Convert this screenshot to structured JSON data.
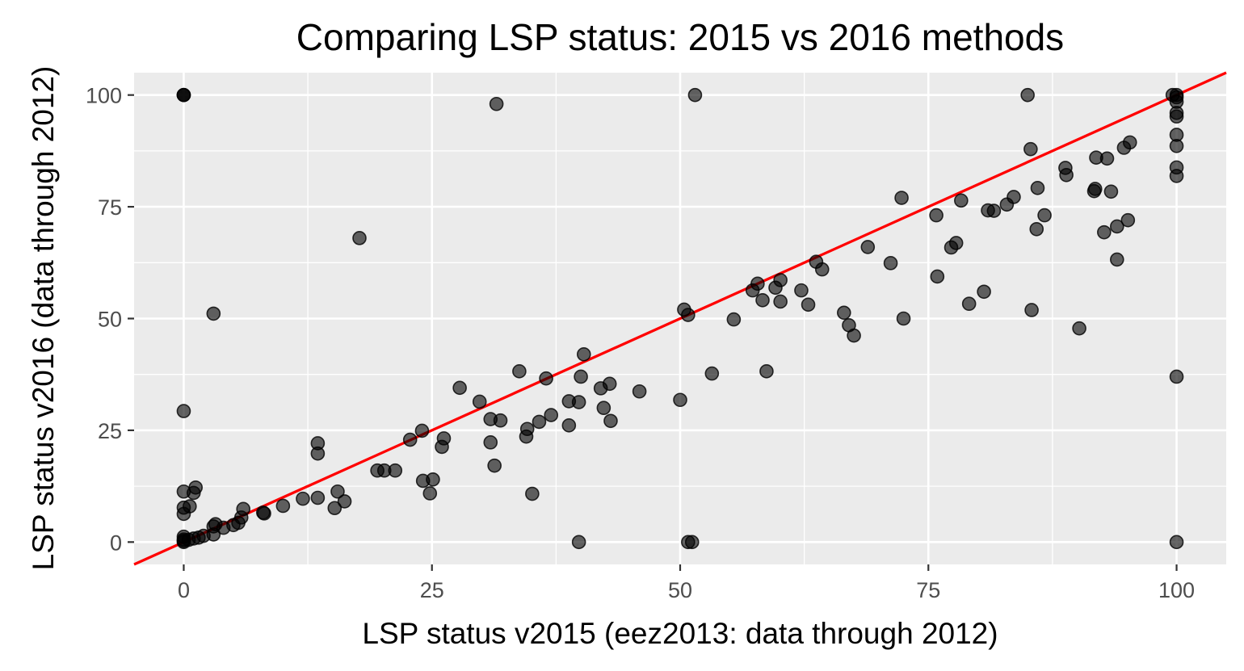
{
  "chart_data": {
    "type": "scatter",
    "title": "Comparing LSP status: 2015 vs 2016 methods",
    "xlabel": "LSP status v2015 (eez2013: data through 2012)",
    "ylabel": "LSP status v2016 (data through 2012)",
    "xlim": [
      -5,
      105
    ],
    "ylim": [
      -5,
      105
    ],
    "x_ticks": [
      0,
      25,
      50,
      75,
      100
    ],
    "y_ticks": [
      0,
      25,
      50,
      75,
      100
    ],
    "x_tick_labels": [
      "0",
      "25",
      "50",
      "75",
      "100"
    ],
    "y_tick_labels": [
      "0",
      "25",
      "50",
      "75",
      "100"
    ],
    "grid": true,
    "background": "#ebebeb",
    "point_color": "#000000",
    "point_alpha": 0.6,
    "reference_line": {
      "slope": 1,
      "intercept": 0,
      "color": "#ff0000"
    },
    "points": [
      [
        0,
        100
      ],
      [
        0,
        100
      ],
      [
        0,
        100
      ],
      [
        0,
        29.3
      ],
      [
        0,
        11.3
      ],
      [
        0,
        7.7
      ],
      [
        0,
        6.3
      ],
      [
        0,
        1.2
      ],
      [
        0,
        0.6
      ],
      [
        0,
        0.3
      ],
      [
        0,
        0
      ],
      [
        0.6,
        8
      ],
      [
        1,
        11
      ],
      [
        1.2,
        12.2
      ],
      [
        0.5,
        0.5
      ],
      [
        1,
        0.8
      ],
      [
        1.5,
        1
      ],
      [
        2,
        1.4
      ],
      [
        3,
        51.1
      ],
      [
        3,
        3.5
      ],
      [
        3.2,
        4
      ],
      [
        3,
        1.7
      ],
      [
        4,
        3.2
      ],
      [
        5,
        3.8
      ],
      [
        5.5,
        4.3
      ],
      [
        6,
        7.4
      ],
      [
        5.8,
        5.5
      ],
      [
        8,
        6.6
      ],
      [
        8.1,
        6.4
      ],
      [
        10,
        8.1
      ],
      [
        12,
        9.7
      ],
      [
        13.5,
        22.1
      ],
      [
        13.5,
        19.8
      ],
      [
        13.5,
        9.9
      ],
      [
        15.5,
        11.3
      ],
      [
        15.2,
        7.6
      ],
      [
        16.2,
        9.1
      ],
      [
        17.7,
        68
      ],
      [
        19.5,
        16
      ],
      [
        20.2,
        16
      ],
      [
        21.3,
        16
      ],
      [
        22.8,
        22.9
      ],
      [
        24,
        24.9
      ],
      [
        24.1,
        13.7
      ],
      [
        25.1,
        14
      ],
      [
        24.8,
        10.9
      ],
      [
        26.2,
        23.2
      ],
      [
        26,
        21.3
      ],
      [
        27.8,
        34.5
      ],
      [
        29.8,
        31.4
      ],
      [
        30.9,
        27.5
      ],
      [
        30.9,
        22.3
      ],
      [
        31.3,
        17.1
      ],
      [
        31.5,
        98
      ],
      [
        31.9,
        27.2
      ],
      [
        33.8,
        38.2
      ],
      [
        34.5,
        23.6
      ],
      [
        34.6,
        25.3
      ],
      [
        35.1,
        10.8
      ],
      [
        35.8,
        26.9
      ],
      [
        36.5,
        36.6
      ],
      [
        37,
        28.4
      ],
      [
        38.8,
        31.5
      ],
      [
        38.8,
        26.1
      ],
      [
        39.8,
        31.3
      ],
      [
        40,
        37
      ],
      [
        40.3,
        42
      ],
      [
        39.8,
        0
      ],
      [
        42,
        34.4
      ],
      [
        42.3,
        30
      ],
      [
        42.9,
        35.4
      ],
      [
        43,
        27.1
      ],
      [
        45.9,
        33.7
      ],
      [
        50,
        31.8
      ],
      [
        50.4,
        52
      ],
      [
        50.8,
        50.8
      ],
      [
        50.8,
        0
      ],
      [
        51.2,
        0
      ],
      [
        51.5,
        100
      ],
      [
        53.2,
        37.7
      ],
      [
        55.4,
        49.8
      ],
      [
        57.3,
        56.3
      ],
      [
        57.8,
        57.8
      ],
      [
        58.3,
        54.1
      ],
      [
        58.7,
        38.2
      ],
      [
        59.6,
        56.9
      ],
      [
        60.1,
        58.6
      ],
      [
        60.1,
        53.8
      ],
      [
        62.2,
        56.3
      ],
      [
        62.9,
        53.1
      ],
      [
        63.7,
        62.7
      ],
      [
        64.3,
        61
      ],
      [
        66.5,
        51.3
      ],
      [
        67,
        48.5
      ],
      [
        67.5,
        46.2
      ],
      [
        68.9,
        66
      ],
      [
        71.2,
        62.4
      ],
      [
        72.3,
        77
      ],
      [
        72.5,
        50
      ],
      [
        75.8,
        73.1
      ],
      [
        75.9,
        59.4
      ],
      [
        77.3,
        65.9
      ],
      [
        77.8,
        66.9
      ],
      [
        78.3,
        76.4
      ],
      [
        79.1,
        53.3
      ],
      [
        80.6,
        56
      ],
      [
        81,
        74.2
      ],
      [
        81.6,
        74.1
      ],
      [
        82.9,
        75.5
      ],
      [
        83.6,
        77.2
      ],
      [
        85,
        100
      ],
      [
        85.3,
        87.9
      ],
      [
        85.4,
        51.9
      ],
      [
        85.9,
        70
      ],
      [
        86,
        79.2
      ],
      [
        86.7,
        73.1
      ],
      [
        88.8,
        83.7
      ],
      [
        88.9,
        82.1
      ],
      [
        90.2,
        47.8
      ],
      [
        91.7,
        78.5
      ],
      [
        91.8,
        79
      ],
      [
        91.9,
        86
      ],
      [
        93,
        85.8
      ],
      [
        92.7,
        69.3
      ],
      [
        93.4,
        78.4
      ],
      [
        94,
        70.6
      ],
      [
        94,
        63.2
      ],
      [
        94.7,
        88.2
      ],
      [
        95.1,
        72
      ],
      [
        95.3,
        89.4
      ],
      [
        99.6,
        100
      ],
      [
        100,
        100
      ],
      [
        100,
        99.5
      ],
      [
        100,
        98.5
      ],
      [
        100,
        96
      ],
      [
        100,
        95.2
      ],
      [
        100,
        91.1
      ],
      [
        100,
        88.6
      ],
      [
        100,
        83.8
      ],
      [
        100,
        81.9
      ],
      [
        100,
        37
      ],
      [
        100,
        0
      ]
    ]
  }
}
